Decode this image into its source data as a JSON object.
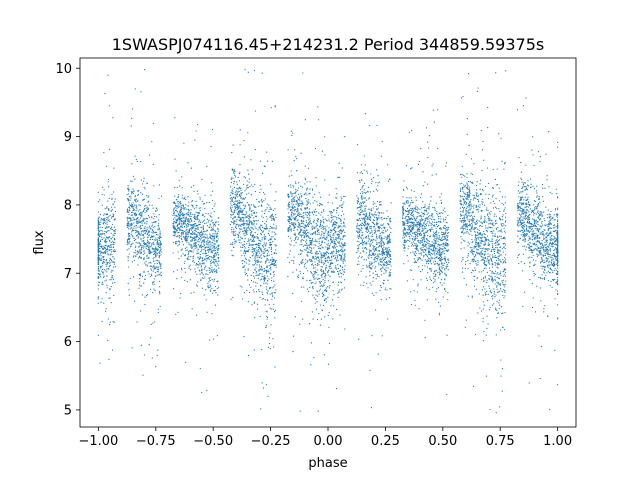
{
  "chart_data": {
    "type": "scatter",
    "title": "1SWASPJ074116.45+214231.2 Period 344859.59375s",
    "xlabel": "phase",
    "ylabel": "flux",
    "xlim": [
      -1.08,
      1.08
    ],
    "ylim": [
      4.75,
      10.15
    ],
    "x_ticks": [
      -1.0,
      -0.75,
      -0.5,
      -0.25,
      0.0,
      0.25,
      0.5,
      0.75,
      1.0
    ],
    "x_tick_labels": [
      "−1.00",
      "−0.75",
      "−0.50",
      "−0.25",
      "0.00",
      "0.25",
      "0.50",
      "0.75",
      "1.00"
    ],
    "y_ticks": [
      5,
      6,
      7,
      8,
      9,
      10
    ],
    "y_tick_labels": [
      "5",
      "6",
      "7",
      "8",
      "9",
      "10"
    ],
    "grid": false,
    "point_color": "#1f77b4",
    "series": [
      {
        "phase_bins": [
          -1.0,
          -0.95,
          -0.9,
          -0.85,
          -0.8,
          -0.75,
          -0.7,
          -0.65,
          -0.6,
          -0.55,
          -0.5,
          -0.45,
          -0.4,
          -0.35,
          -0.3,
          -0.25,
          -0.2,
          -0.15,
          -0.1,
          -0.05,
          0.0,
          0.05,
          0.1,
          0.15,
          0.2,
          0.25,
          0.3,
          0.35,
          0.4,
          0.45,
          0.5,
          0.55,
          0.6,
          0.65,
          0.7,
          0.75,
          0.8,
          0.85,
          0.9,
          0.95,
          1.0
        ],
        "flux_median": [
          7.35,
          7.45,
          null,
          7.75,
          7.55,
          7.35,
          null,
          7.75,
          7.6,
          7.45,
          7.35,
          null,
          7.9,
          7.6,
          7.35,
          7.25,
          null,
          7.85,
          7.65,
          7.35,
          7.3,
          7.45,
          null,
          7.75,
          7.55,
          7.35,
          null,
          7.75,
          7.6,
          7.45,
          7.35,
          null,
          7.9,
          7.6,
          7.35,
          7.25,
          null,
          7.85,
          7.65,
          7.45,
          7.35
        ],
        "flux_spread": [
          0.3,
          0.35,
          null,
          0.3,
          0.35,
          0.3,
          null,
          0.2,
          0.25,
          0.3,
          0.3,
          null,
          0.3,
          0.35,
          0.4,
          0.45,
          null,
          0.25,
          0.35,
          0.35,
          0.35,
          0.35,
          null,
          0.3,
          0.35,
          0.3,
          null,
          0.2,
          0.25,
          0.3,
          0.3,
          null,
          0.3,
          0.35,
          0.4,
          0.45,
          null,
          0.25,
          0.3,
          0.3,
          0.3
        ]
      }
    ]
  }
}
